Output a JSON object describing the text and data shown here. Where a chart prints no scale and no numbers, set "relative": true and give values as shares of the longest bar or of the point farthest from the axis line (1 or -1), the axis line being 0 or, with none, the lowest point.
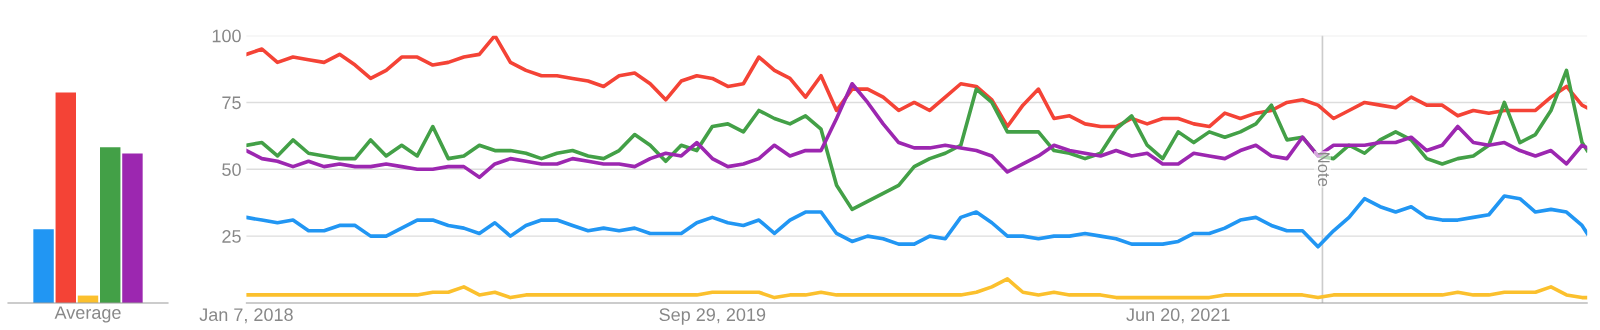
{
  "chart_data": [
    {
      "type": "bar",
      "relative": true,
      "categories": [
        null,
        null,
        null,
        null,
        null
      ],
      "values": [
        0.35,
        1,
        0.035,
        0.74,
        0.71
      ],
      "colors": [
        "#2196f3",
        "#f44336",
        "#fbc02d",
        "#43a047",
        "#9c27b0"
      ],
      "xlabel": "Average",
      "grid": false
    },
    {
      "type": "line",
      "xlim": [
        "2018-01-07",
        "2022-12-25"
      ],
      "ylim": [
        0,
        100
      ],
      "yticks": [
        25,
        50,
        75,
        100
      ],
      "xticks": [
        {
          "value": "2018-01-07",
          "label": "Jan 7, 2018"
        },
        {
          "value": "2019-09-29",
          "label": "Sep 29, 2019"
        },
        {
          "value": "2021-06-20",
          "label": "Jun 20, 2021"
        }
      ],
      "grid": "y",
      "marker": "none",
      "line_style": "solid",
      "ref_lines": [
        {
          "axis": "x",
          "value": "2022-01-01",
          "label": "Note",
          "color": "#cccccc"
        }
      ],
      "x": [
        "2018-01-07",
        "2018-01-28",
        "2018-02-18",
        "2018-03-11",
        "2018-04-01",
        "2018-04-22",
        "2018-05-13",
        "2018-06-03",
        "2018-06-24",
        "2018-07-15",
        "2018-08-05",
        "2018-08-26",
        "2018-09-16",
        "2018-10-07",
        "2018-10-28",
        "2018-11-18",
        "2018-12-09",
        "2018-12-30",
        "2019-01-20",
        "2019-02-10",
        "2019-03-03",
        "2019-03-24",
        "2019-04-14",
        "2019-05-05",
        "2019-05-26",
        "2019-06-16",
        "2019-07-07",
        "2019-07-28",
        "2019-08-18",
        "2019-09-08",
        "2019-09-29",
        "2019-10-20",
        "2019-11-10",
        "2019-12-01",
        "2019-12-22",
        "2020-01-12",
        "2020-02-02",
        "2020-02-23",
        "2020-03-15",
        "2020-04-05",
        "2020-04-26",
        "2020-05-17",
        "2020-06-07",
        "2020-06-28",
        "2020-07-19",
        "2020-08-09",
        "2020-08-30",
        "2020-09-20",
        "2020-10-11",
        "2020-11-01",
        "2020-11-22",
        "2020-12-13",
        "2021-01-03",
        "2021-01-24",
        "2021-02-14",
        "2021-03-07",
        "2021-03-28",
        "2021-04-18",
        "2021-05-09",
        "2021-05-30",
        "2021-06-20",
        "2021-07-11",
        "2021-08-01",
        "2021-08-22",
        "2021-09-12",
        "2021-10-03",
        "2021-10-24",
        "2021-11-14",
        "2021-12-05",
        "2021-12-26",
        "2022-01-16",
        "2022-02-06",
        "2022-02-27",
        "2022-03-20",
        "2022-04-10",
        "2022-05-01",
        "2022-05-22",
        "2022-06-12",
        "2022-07-03",
        "2022-07-24",
        "2022-08-14",
        "2022-09-04",
        "2022-09-25",
        "2022-10-16",
        "2022-11-06",
        "2022-11-27",
        "2022-12-18",
        "2022-12-25"
      ],
      "series": [
        {
          "color": "#2196f3",
          "values": [
            32,
            31,
            30,
            31,
            27,
            27,
            29,
            29,
            25,
            25,
            28,
            31,
            31,
            29,
            28,
            26,
            30,
            25,
            29,
            31,
            31,
            29,
            27,
            28,
            27,
            28,
            26,
            26,
            26,
            30,
            32,
            30,
            29,
            31,
            26,
            31,
            34,
            34,
            26,
            23,
            25,
            24,
            22,
            22,
            25,
            24,
            32,
            34,
            30,
            25,
            25,
            24,
            25,
            25,
            26,
            25,
            24,
            22,
            22,
            22,
            23,
            26,
            26,
            28,
            31,
            32,
            29,
            27,
            27,
            21,
            27,
            32,
            39,
            36,
            34,
            36,
            32,
            31,
            31,
            32,
            33,
            40,
            39,
            34,
            35,
            34,
            29,
            26
          ]
        },
        {
          "color": "#f44336",
          "values": [
            93,
            95,
            90,
            92,
            91,
            90,
            93,
            89,
            84,
            87,
            92,
            92,
            89,
            90,
            92,
            93,
            100,
            90,
            87,
            85,
            85,
            84,
            83,
            81,
            85,
            86,
            82,
            76,
            83,
            85,
            84,
            81,
            82,
            92,
            87,
            84,
            77,
            85,
            72,
            80,
            80,
            77,
            72,
            75,
            72,
            77,
            82,
            81,
            76,
            66,
            74,
            80,
            69,
            70,
            67,
            66,
            66,
            69,
            67,
            69,
            69,
            67,
            66,
            71,
            69,
            71,
            72,
            75,
            76,
            74,
            69,
            72,
            75,
            74,
            73,
            77,
            74,
            74,
            70,
            72,
            71,
            72,
            72,
            72,
            77,
            81,
            74,
            73
          ]
        },
        {
          "color": "#fbc02d",
          "values": [
            3,
            3,
            3,
            3,
            3,
            3,
            3,
            3,
            3,
            3,
            3,
            3,
            4,
            4,
            6,
            3,
            4,
            2,
            3,
            3,
            3,
            3,
            3,
            3,
            3,
            3,
            3,
            3,
            3,
            3,
            4,
            4,
            4,
            4,
            2,
            3,
            3,
            4,
            3,
            3,
            3,
            3,
            3,
            3,
            3,
            3,
            3,
            4,
            6,
            9,
            4,
            3,
            4,
            3,
            3,
            3,
            2,
            2,
            2,
            2,
            2,
            2,
            2,
            3,
            3,
            3,
            3,
            3,
            3,
            2,
            3,
            3,
            3,
            3,
            3,
            3,
            3,
            3,
            4,
            3,
            3,
            4,
            4,
            4,
            6,
            3,
            2,
            2
          ]
        },
        {
          "color": "#43a047",
          "values": [
            59,
            60,
            55,
            61,
            56,
            55,
            54,
            54,
            61,
            55,
            59,
            55,
            66,
            54,
            55,
            59,
            57,
            57,
            56,
            54,
            56,
            57,
            55,
            54,
            57,
            63,
            59,
            53,
            59,
            57,
            66,
            67,
            64,
            72,
            69,
            67,
            70,
            65,
            44,
            35,
            38,
            41,
            44,
            51,
            54,
            56,
            59,
            80,
            75,
            64,
            64,
            64,
            57,
            56,
            54,
            56,
            65,
            70,
            59,
            54,
            64,
            60,
            64,
            62,
            64,
            67,
            74,
            61,
            62,
            55,
            54,
            59,
            56,
            61,
            64,
            61,
            54,
            52,
            54,
            55,
            59,
            75,
            60,
            63,
            72,
            87,
            60,
            57
          ]
        },
        {
          "color": "#9c27b0",
          "values": [
            57,
            54,
            53,
            51,
            53,
            51,
            52,
            51,
            51,
            52,
            51,
            50,
            50,
            51,
            51,
            47,
            52,
            54,
            53,
            52,
            52,
            54,
            53,
            52,
            52,
            51,
            54,
            56,
            55,
            60,
            54,
            51,
            52,
            54,
            59,
            55,
            57,
            57,
            69,
            82,
            75,
            67,
            60,
            58,
            58,
            59,
            58,
            57,
            55,
            49,
            52,
            55,
            59,
            57,
            56,
            55,
            57,
            55,
            56,
            52,
            52,
            56,
            55,
            54,
            57,
            59,
            55,
            54,
            62,
            55,
            59,
            59,
            59,
            60,
            60,
            62,
            57,
            59,
            66,
            60,
            59,
            60,
            57,
            55,
            57,
            52,
            59,
            58
          ]
        }
      ]
    }
  ]
}
